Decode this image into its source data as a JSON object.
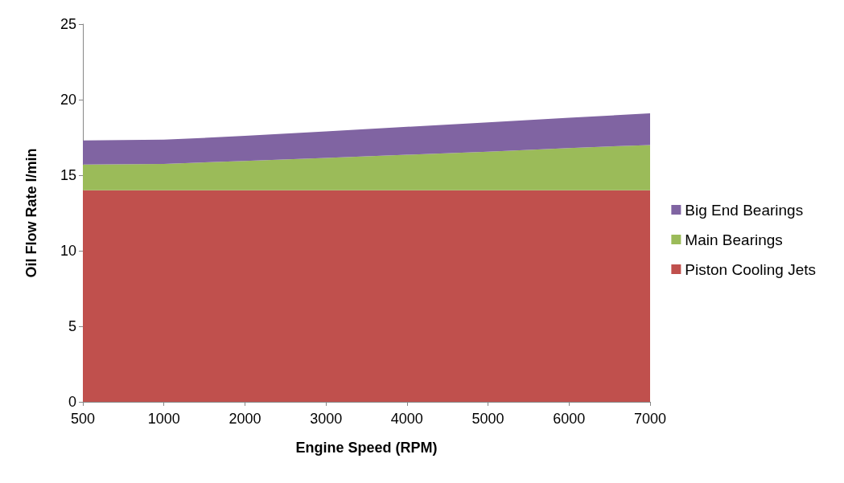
{
  "chart_data": {
    "type": "area",
    "stacked": true,
    "xlabel": "Engine Speed (RPM)",
    "ylabel": "Oil Flow Rate l/min",
    "categories": [
      "500",
      "1000",
      "2000",
      "3000",
      "4000",
      "5000",
      "6000",
      "7000"
    ],
    "series": [
      {
        "name": "Piston Cooling Jets",
        "color": "#c0504d",
        "values": [
          14,
          14,
          14,
          14,
          14,
          14,
          14,
          14
        ]
      },
      {
        "name": "Main Bearings",
        "color": "#9bbb59",
        "values": [
          1.7,
          1.75,
          1.95,
          2.15,
          2.35,
          2.55,
          2.8,
          3.0
        ]
      },
      {
        "name": "Big End Bearings",
        "color": "#8064a2",
        "values": [
          1.6,
          1.6,
          1.65,
          1.75,
          1.85,
          1.95,
          2.0,
          2.1
        ]
      }
    ],
    "ylim": [
      0,
      25
    ],
    "yticks": [
      0,
      5,
      10,
      15,
      20,
      25
    ],
    "grid": false,
    "legend": "right"
  }
}
